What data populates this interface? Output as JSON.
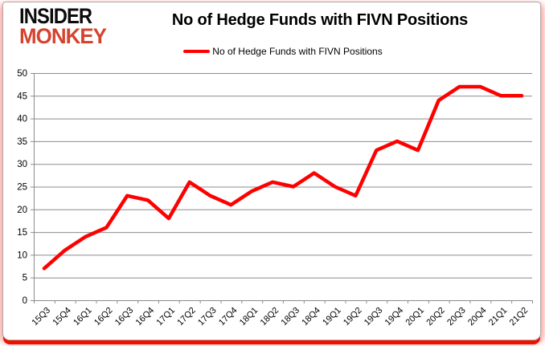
{
  "logo": {
    "line1": "INSIDER",
    "line2": "MONKEY"
  },
  "header": {
    "title": "No of Hedge Funds with FIVN Positions"
  },
  "legend": {
    "marker": "red-line",
    "label": "No of Hedge Funds with FIVN Positions"
  },
  "colors": {
    "series": "#ff0000",
    "logo_accent": "#d5432e",
    "gridline": "#8c8c8c",
    "axis": "#8c8c8c",
    "text": "#000000",
    "card_border": "#ababab",
    "bottom_bar": "#ee1100"
  },
  "chart_data": {
    "type": "line",
    "title": "No of Hedge Funds with FIVN Positions",
    "categories": [
      "15Q3",
      "15Q4",
      "16Q1",
      "16Q2",
      "16Q3",
      "16Q4",
      "17Q1",
      "17Q2",
      "17Q3",
      "17Q4",
      "18Q1",
      "18Q2",
      "18Q3",
      "18Q4",
      "19Q1",
      "19Q2",
      "19Q3",
      "19Q4",
      "20Q1",
      "20Q2",
      "20Q3",
      "20Q4",
      "21Q1",
      "21Q2"
    ],
    "series": [
      {
        "name": "No of Hedge Funds with FIVN Positions",
        "color": "#ff0000",
        "values": [
          7,
          11,
          14,
          16,
          23,
          22,
          18,
          26,
          23,
          21,
          24,
          26,
          25,
          28,
          25,
          23,
          33,
          35,
          33,
          44,
          47,
          47,
          45,
          45
        ]
      }
    ],
    "xlabel": "",
    "ylabel": "",
    "ylim": [
      0,
      50
    ],
    "y_ticks": [
      0,
      5,
      10,
      15,
      20,
      25,
      30,
      35,
      40,
      45,
      50
    ],
    "grid": "horizontal",
    "legend_position": "top-center",
    "x_label_rotation": -45
  }
}
